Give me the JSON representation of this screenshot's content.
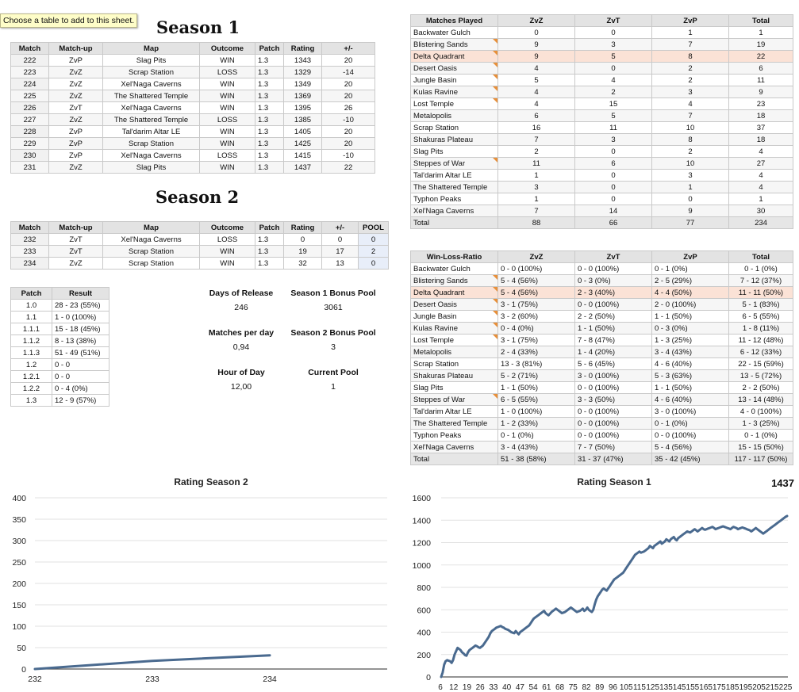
{
  "tooltip": "Choose a table to add to this sheet.",
  "season1": {
    "title": "Season 1",
    "headers": [
      "Match",
      "Match-up",
      "Map",
      "Outcome",
      "Patch",
      "Rating",
      "+/-"
    ],
    "rows": [
      [
        "222",
        "ZvP",
        "Slag Pits",
        "WIN",
        "1.3",
        "1343",
        "20"
      ],
      [
        "223",
        "ZvZ",
        "Scrap Station",
        "LOSS",
        "1.3",
        "1329",
        "-14"
      ],
      [
        "224",
        "ZvZ",
        "Xel'Naga Caverns",
        "WIN",
        "1.3",
        "1349",
        "20"
      ],
      [
        "225",
        "ZvZ",
        "The Shattered Temple",
        "WIN",
        "1.3",
        "1369",
        "20"
      ],
      [
        "226",
        "ZvT",
        "Xel'Naga Caverns",
        "WIN",
        "1.3",
        "1395",
        "26"
      ],
      [
        "227",
        "ZvZ",
        "The Shattered Temple",
        "LOSS",
        "1.3",
        "1385",
        "-10"
      ],
      [
        "228",
        "ZvP",
        "Tal'darim Altar LE",
        "WIN",
        "1.3",
        "1405",
        "20"
      ],
      [
        "229",
        "ZvP",
        "Scrap Station",
        "WIN",
        "1.3",
        "1425",
        "20"
      ],
      [
        "230",
        "ZvP",
        "Xel'Naga Caverns",
        "LOSS",
        "1.3",
        "1415",
        "-10"
      ],
      [
        "231",
        "ZvZ",
        "Slag Pits",
        "WIN",
        "1.3",
        "1437",
        "22"
      ]
    ]
  },
  "season2": {
    "title": "Season 2",
    "headers": [
      "Match",
      "Match-up",
      "Map",
      "Outcome",
      "Patch",
      "Rating",
      "+/-",
      "POOL"
    ],
    "rows": [
      [
        "232",
        "ZvT",
        "Xel'Naga Caverns",
        "LOSS",
        "1.3",
        "0",
        "0",
        "0"
      ],
      [
        "233",
        "ZvT",
        "Scrap Station",
        "WIN",
        "1.3",
        "19",
        "17",
        "2"
      ],
      [
        "234",
        "ZvZ",
        "Scrap Station",
        "WIN",
        "1.3",
        "32",
        "13",
        "0"
      ]
    ]
  },
  "patches": {
    "headers": [
      "Patch",
      "Result"
    ],
    "rows": [
      [
        "1.0",
        "28 - 23 (55%)"
      ],
      [
        "1.1",
        "1 - 0 (100%)"
      ],
      [
        "1.1.1",
        "15 - 18 (45%)"
      ],
      [
        "1.1.2",
        "8 - 13 (38%)"
      ],
      [
        "1.1.3",
        "51 - 49 (51%)"
      ],
      [
        "1.2",
        "0 - 0"
      ],
      [
        "1.2.1",
        "0 - 0"
      ],
      [
        "1.2.2",
        "0 - 4 (0%)"
      ],
      [
        "1.3",
        "12 - 9 (57%)"
      ]
    ]
  },
  "stats": {
    "days_label": "Days of Release",
    "days_value": "246",
    "bonus1_label": "Season 1 Bonus Pool",
    "bonus1_value": "3061",
    "mpd_label": "Matches per day",
    "mpd_value": "0,94",
    "bonus2_label": "Season 2 Bonus Pool",
    "bonus2_value": "3",
    "hour_label": "Hour of Day",
    "hour_value": "12,00",
    "pool_label": "Current Pool",
    "pool_value": "1"
  },
  "matches_played": {
    "headers": [
      "Matches Played",
      "ZvZ",
      "ZvT",
      "ZvP",
      "Total"
    ],
    "rows": [
      [
        "Backwater Gulch",
        "0",
        "0",
        "1",
        "1"
      ],
      [
        "Blistering Sands",
        "9",
        "3",
        "7",
        "19"
      ],
      [
        "Delta Quadrant",
        "9",
        "5",
        "8",
        "22"
      ],
      [
        "Desert Oasis",
        "4",
        "0",
        "2",
        "6"
      ],
      [
        "Jungle Basin",
        "5",
        "4",
        "2",
        "11"
      ],
      [
        "Kulas Ravine",
        "4",
        "2",
        "3",
        "9"
      ],
      [
        "Lost Temple",
        "4",
        "15",
        "4",
        "23"
      ],
      [
        "Metalopolis",
        "6",
        "5",
        "7",
        "18"
      ],
      [
        "Scrap Station",
        "16",
        "11",
        "10",
        "37"
      ],
      [
        "Shakuras Plateau",
        "7",
        "3",
        "8",
        "18"
      ],
      [
        "Slag Pits",
        "2",
        "0",
        "2",
        "4"
      ],
      [
        "Steppes of War",
        "11",
        "6",
        "10",
        "27"
      ],
      [
        "Tal'darim Altar LE",
        "1",
        "0",
        "3",
        "4"
      ],
      [
        "The Shattered Temple",
        "3",
        "0",
        "1",
        "4"
      ],
      [
        "Typhon Peaks",
        "1",
        "0",
        "0",
        "1"
      ],
      [
        "Xel'Naga Caverns",
        "7",
        "14",
        "9",
        "30"
      ]
    ],
    "total": [
      "Total",
      "88",
      "66",
      "77",
      "234"
    ]
  },
  "win_loss": {
    "headers": [
      "Win-Loss-Ratio",
      "ZvZ",
      "ZvT",
      "ZvP",
      "Total"
    ],
    "rows": [
      [
        "Backwater Gulch",
        "0 - 0 (100%)",
        "0 - 0 (100%)",
        "0 - 1 (0%)",
        "0 - 1 (0%)"
      ],
      [
        "Blistering Sands",
        "5 - 4 (56%)",
        "0 - 3 (0%)",
        "2 - 5 (29%)",
        "7 - 12 (37%)"
      ],
      [
        "Delta Quadrant",
        "5 - 4 (56%)",
        "2 - 3 (40%)",
        "4 - 4 (50%)",
        "11 - 11 (50%)"
      ],
      [
        "Desert Oasis",
        "3 - 1 (75%)",
        "0 - 0 (100%)",
        "2 - 0 (100%)",
        "5 - 1 (83%)"
      ],
      [
        "Jungle Basin",
        "3 - 2 (60%)",
        "2 - 2 (50%)",
        "1 - 1 (50%)",
        "6 - 5 (55%)"
      ],
      [
        "Kulas Ravine",
        "0 - 4 (0%)",
        "1 - 1 (50%)",
        "0 - 3 (0%)",
        "1 - 8 (11%)"
      ],
      [
        "Lost Temple",
        "3 - 1 (75%)",
        "7 - 8 (47%)",
        "1 - 3 (25%)",
        "11 - 12 (48%)"
      ],
      [
        "Metalopolis",
        "2 - 4 (33%)",
        "1 - 4 (20%)",
        "3 - 4 (43%)",
        "6 - 12 (33%)"
      ],
      [
        "Scrap Station",
        "13 - 3 (81%)",
        "5 - 6 (45%)",
        "4 - 6 (40%)",
        "22 - 15 (59%)"
      ],
      [
        "Shakuras Plateau",
        "5 - 2 (71%)",
        "3 - 0 (100%)",
        "5 - 3 (63%)",
        "13 - 5 (72%)"
      ],
      [
        "Slag Pits",
        "1 - 1 (50%)",
        "0 - 0 (100%)",
        "1 - 1 (50%)",
        "2 - 2 (50%)"
      ],
      [
        "Steppes of War",
        "6 - 5 (55%)",
        "3 - 3 (50%)",
        "4 - 6 (40%)",
        "13 - 14 (48%)"
      ],
      [
        "Tal'darim Altar LE",
        "1 - 0 (100%)",
        "0 - 0 (100%)",
        "3 - 0 (100%)",
        "4 - 0 (100%)"
      ],
      [
        "The Shattered Temple",
        "1 - 2 (33%)",
        "0 - 0 (100%)",
        "0 - 1 (0%)",
        "1 - 3 (25%)"
      ],
      [
        "Typhon Peaks",
        "0 - 1 (0%)",
        "0 - 0 (100%)",
        "0 - 0 (100%)",
        "0 - 1 (0%)"
      ],
      [
        "Xel'Naga Caverns",
        "3 - 4 (43%)",
        "7 - 7 (50%)",
        "5 - 4 (56%)",
        "15 - 15 (50%)"
      ]
    ],
    "total": [
      "Total",
      "51 - 38 (58%)",
      "31 - 37 (47%)",
      "35 - 42 (45%)",
      "117 - 117 (50%)"
    ]
  },
  "colors": {
    "highlight_row": "#fbe2d6",
    "pool_header": "#cfd9ee",
    "line": "#4a6a8f",
    "comment_marker": "#e8903a"
  },
  "chart_data": [
    {
      "type": "line",
      "title": "Rating Season 2",
      "x": [
        232,
        233,
        234
      ],
      "categories": [
        "232",
        "233",
        "234"
      ],
      "values": [
        0,
        19,
        32
      ],
      "ylim": [
        0,
        400
      ],
      "yticks": [
        0,
        50,
        100,
        150,
        200,
        250,
        300,
        350,
        400
      ],
      "grid": true
    },
    {
      "type": "line",
      "title": "Rating Season 1",
      "corner_label": "1437",
      "ylim": [
        0,
        1600
      ],
      "yticks": [
        0,
        200,
        400,
        600,
        800,
        1000,
        1200,
        1400,
        1600
      ],
      "xtick_labels": [
        "6",
        "12",
        "19",
        "26",
        "33",
        "40",
        "47",
        "54",
        "61",
        "68",
        "75",
        "82",
        "89",
        "96",
        "105",
        "115",
        "125",
        "135",
        "145",
        "155",
        "165",
        "175",
        "185",
        "195",
        "205",
        "215",
        "225"
      ],
      "values": [
        0,
        40,
        110,
        140,
        150,
        145,
        140,
        125,
        150,
        200,
        230,
        260,
        250,
        240,
        220,
        210,
        195,
        190,
        220,
        240,
        250,
        260,
        270,
        280,
        275,
        265,
        260,
        270,
        280,
        300,
        320,
        340,
        360,
        390,
        410,
        420,
        430,
        440,
        445,
        450,
        455,
        445,
        440,
        430,
        425,
        420,
        410,
        400,
        395,
        390,
        410,
        395,
        380,
        400,
        410,
        420,
        430,
        440,
        450,
        460,
        480,
        500,
        520,
        530,
        540,
        550,
        560,
        570,
        580,
        590,
        570,
        560,
        550,
        565,
        580,
        590,
        600,
        610,
        600,
        590,
        580,
        570,
        575,
        580,
        590,
        600,
        610,
        620,
        610,
        600,
        590,
        580,
        585,
        590,
        600,
        610,
        590,
        600,
        620,
        600,
        590,
        580,
        600,
        650,
        690,
        720,
        740,
        760,
        780,
        790,
        780,
        770,
        790,
        810,
        830,
        850,
        870,
        880,
        890,
        900,
        910,
        920,
        930,
        950,
        970,
        990,
        1010,
        1030,
        1050,
        1070,
        1090,
        1100,
        1110,
        1120,
        1110,
        1115,
        1120,
        1130,
        1140,
        1150,
        1170,
        1160,
        1150,
        1170,
        1180,
        1190,
        1200,
        1210,
        1190,
        1200,
        1210,
        1230,
        1220,
        1210,
        1230,
        1240,
        1250,
        1230,
        1220,
        1240,
        1250,
        1260,
        1270,
        1280,
        1290,
        1300,
        1295,
        1290,
        1300,
        1310,
        1320,
        1310,
        1300,
        1310,
        1320,
        1330,
        1320,
        1315,
        1320,
        1325,
        1330,
        1335,
        1340,
        1330,
        1320,
        1325,
        1330,
        1335,
        1340,
        1345,
        1340,
        1335,
        1330,
        1325,
        1320,
        1330,
        1340,
        1335,
        1330,
        1320,
        1325,
        1330,
        1335,
        1330,
        1325,
        1320,
        1315,
        1310,
        1300,
        1310,
        1320,
        1330,
        1320,
        1310,
        1300,
        1290,
        1280,
        1290,
        1300,
        1310,
        1320,
        1330,
        1340,
        1350,
        1360,
        1370,
        1380,
        1390,
        1400,
        1410,
        1420,
        1430,
        1437
      ],
      "grid": true
    }
  ]
}
